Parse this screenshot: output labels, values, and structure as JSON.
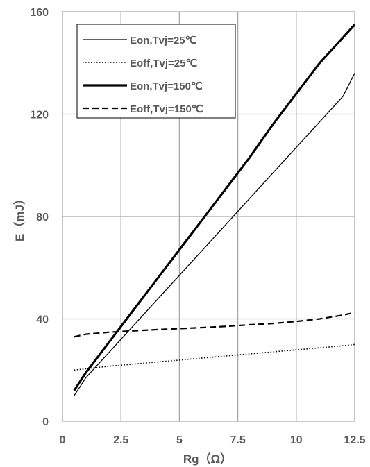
{
  "chart_data": {
    "type": "line",
    "title": "",
    "xlabel": "Rg（Ω）",
    "ylabel": "E（mJ）",
    "xlim": [
      0,
      12.5
    ],
    "ylim": [
      0,
      160
    ],
    "x_ticks": [
      "0",
      "2.5",
      "5",
      "7.5",
      "10",
      "12.5"
    ],
    "y_ticks": [
      "0",
      "40",
      "80",
      "120",
      "160"
    ],
    "grid": true,
    "legend_position": "top-left",
    "series": [
      {
        "name": "Eon,Tvj=25℃",
        "style": "thin-solid",
        "x": [
          0.5,
          1,
          2,
          3,
          4,
          5,
          6,
          7,
          8,
          9,
          10,
          11,
          12,
          12.5
        ],
        "y": [
          10,
          17,
          27,
          37,
          47,
          57,
          67,
          77,
          87,
          97,
          107,
          117,
          127,
          136
        ]
      },
      {
        "name": "Eoff,Tvj=25℃",
        "style": "dotted",
        "x": [
          0.5,
          1,
          2,
          3,
          4,
          5,
          6,
          7,
          8,
          9,
          10,
          11,
          12,
          12.5
        ],
        "y": [
          20,
          20.5,
          21.5,
          22.3,
          23.1,
          23.9,
          24.7,
          25.5,
          26.3,
          27.1,
          27.9,
          28.7,
          29.5,
          30
        ]
      },
      {
        "name": "Eon,Tvj=150℃",
        "style": "thick-solid",
        "x": [
          0.5,
          1,
          2,
          3,
          4,
          5,
          6,
          7,
          8,
          9,
          10,
          11,
          12,
          12.5
        ],
        "y": [
          12,
          19,
          31,
          43,
          55,
          67,
          79,
          91,
          103,
          116,
          128,
          140,
          150,
          155
        ]
      },
      {
        "name": "Eoff,Tvj=150℃",
        "style": "dashed",
        "x": [
          0.5,
          1,
          2,
          3,
          4,
          5,
          6,
          7,
          8,
          9,
          10,
          11,
          12,
          12.5
        ],
        "y": [
          33,
          34,
          34.8,
          35.3,
          35.8,
          36.2,
          36.6,
          37.1,
          37.7,
          38.2,
          39,
          40,
          41.5,
          42.5
        ]
      }
    ]
  },
  "colors": {
    "line": "#000000",
    "grid": "#a6a6a6",
    "text": "#595959"
  }
}
